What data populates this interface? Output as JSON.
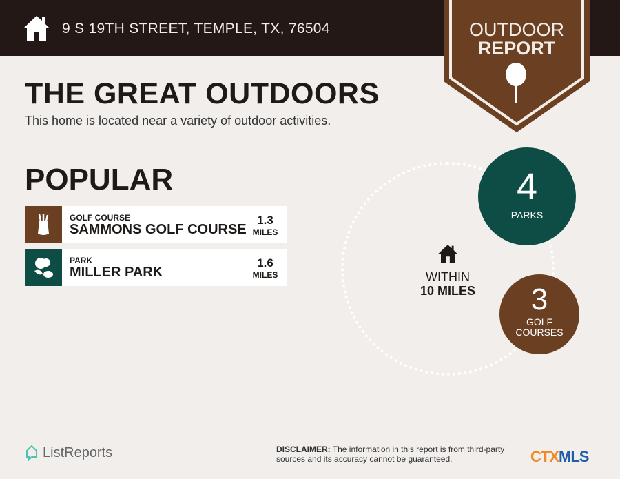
{
  "header": {
    "address": "9 S 19TH STREET, TEMPLE, TX, 76504",
    "icon": "home-icon"
  },
  "badge": {
    "line1": "OUTDOOR",
    "line2": "REPORT",
    "icon": "tree-icon",
    "color": "#6b3f22"
  },
  "title": "THE GREAT OUTDOORS",
  "subtitle": "This home is located near a variety of outdoor activities.",
  "popular": {
    "heading": "POPULAR",
    "items": [
      {
        "category": "GOLF COURSE",
        "name": "SAMMONS GOLF COURSE",
        "distance": "1.3",
        "unit": "MILES",
        "icon": "golf-bag-icon",
        "color": "#6b3f22"
      },
      {
        "category": "PARK",
        "name": "MILLER PARK",
        "distance": "1.6",
        "unit": "MILES",
        "icon": "park-icon",
        "color": "#0e4d45"
      }
    ]
  },
  "summary": {
    "within_line1": "WITHIN",
    "within_line2": "10 MILES",
    "parks": {
      "count": "4",
      "label": "PARKS",
      "color": "#0e4d45"
    },
    "golf": {
      "count": "3",
      "label_line1": "GOLF",
      "label_line2": "COURSES",
      "color": "#6b3f22"
    }
  },
  "footer": {
    "brand": "ListReports",
    "disclaimer_label": "DISCLAIMER:",
    "disclaimer_text": " The information in this report is from third-party sources and its accuracy cannot be guaranteed.",
    "mls_part1": "CTX",
    "mls_part2": "MLS"
  }
}
